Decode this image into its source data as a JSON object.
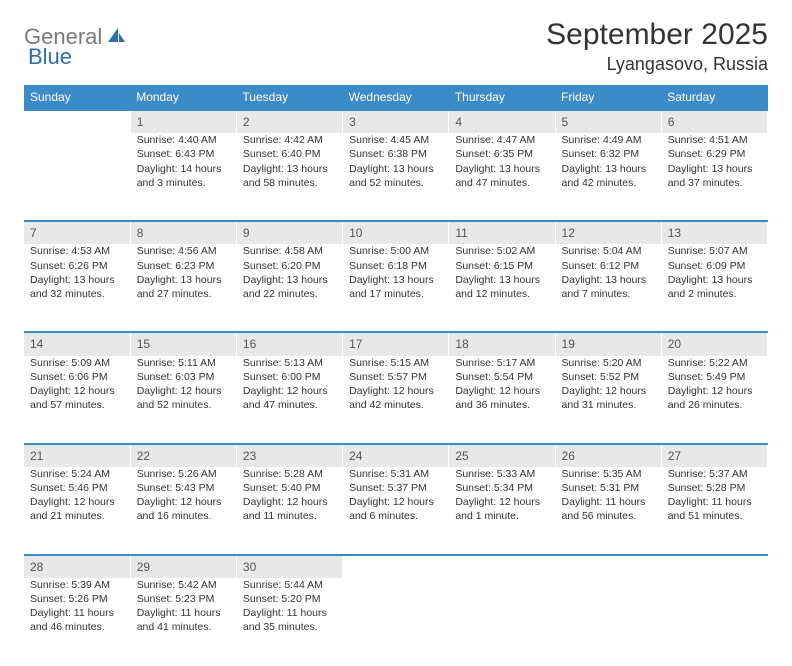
{
  "logo": {
    "text1": "General",
    "text2": "Blue"
  },
  "title": "September 2025",
  "location": "Lyangasovo, Russia",
  "accent_color": "#3b8bc8",
  "day_bg": "#e8e8e8",
  "weekdays": [
    "Sunday",
    "Monday",
    "Tuesday",
    "Wednesday",
    "Thursday",
    "Friday",
    "Saturday"
  ],
  "weeks": [
    {
      "nums": [
        "",
        "1",
        "2",
        "3",
        "4",
        "5",
        "6"
      ],
      "cells": [
        null,
        {
          "sunrise": "Sunrise: 4:40 AM",
          "sunset": "Sunset: 6:43 PM",
          "day1": "Daylight: 14 hours",
          "day2": "and 3 minutes."
        },
        {
          "sunrise": "Sunrise: 4:42 AM",
          "sunset": "Sunset: 6:40 PM",
          "day1": "Daylight: 13 hours",
          "day2": "and 58 minutes."
        },
        {
          "sunrise": "Sunrise: 4:45 AM",
          "sunset": "Sunset: 6:38 PM",
          "day1": "Daylight: 13 hours",
          "day2": "and 52 minutes."
        },
        {
          "sunrise": "Sunrise: 4:47 AM",
          "sunset": "Sunset: 6:35 PM",
          "day1": "Daylight: 13 hours",
          "day2": "and 47 minutes."
        },
        {
          "sunrise": "Sunrise: 4:49 AM",
          "sunset": "Sunset: 6:32 PM",
          "day1": "Daylight: 13 hours",
          "day2": "and 42 minutes."
        },
        {
          "sunrise": "Sunrise: 4:51 AM",
          "sunset": "Sunset: 6:29 PM",
          "day1": "Daylight: 13 hours",
          "day2": "and 37 minutes."
        }
      ]
    },
    {
      "nums": [
        "7",
        "8",
        "9",
        "10",
        "11",
        "12",
        "13"
      ],
      "cells": [
        {
          "sunrise": "Sunrise: 4:53 AM",
          "sunset": "Sunset: 6:26 PM",
          "day1": "Daylight: 13 hours",
          "day2": "and 32 minutes."
        },
        {
          "sunrise": "Sunrise: 4:56 AM",
          "sunset": "Sunset: 6:23 PM",
          "day1": "Daylight: 13 hours",
          "day2": "and 27 minutes."
        },
        {
          "sunrise": "Sunrise: 4:58 AM",
          "sunset": "Sunset: 6:20 PM",
          "day1": "Daylight: 13 hours",
          "day2": "and 22 minutes."
        },
        {
          "sunrise": "Sunrise: 5:00 AM",
          "sunset": "Sunset: 6:18 PM",
          "day1": "Daylight: 13 hours",
          "day2": "and 17 minutes."
        },
        {
          "sunrise": "Sunrise: 5:02 AM",
          "sunset": "Sunset: 6:15 PM",
          "day1": "Daylight: 13 hours",
          "day2": "and 12 minutes."
        },
        {
          "sunrise": "Sunrise: 5:04 AM",
          "sunset": "Sunset: 6:12 PM",
          "day1": "Daylight: 13 hours",
          "day2": "and 7 minutes."
        },
        {
          "sunrise": "Sunrise: 5:07 AM",
          "sunset": "Sunset: 6:09 PM",
          "day1": "Daylight: 13 hours",
          "day2": "and 2 minutes."
        }
      ]
    },
    {
      "nums": [
        "14",
        "15",
        "16",
        "17",
        "18",
        "19",
        "20"
      ],
      "cells": [
        {
          "sunrise": "Sunrise: 5:09 AM",
          "sunset": "Sunset: 6:06 PM",
          "day1": "Daylight: 12 hours",
          "day2": "and 57 minutes."
        },
        {
          "sunrise": "Sunrise: 5:11 AM",
          "sunset": "Sunset: 6:03 PM",
          "day1": "Daylight: 12 hours",
          "day2": "and 52 minutes."
        },
        {
          "sunrise": "Sunrise: 5:13 AM",
          "sunset": "Sunset: 6:00 PM",
          "day1": "Daylight: 12 hours",
          "day2": "and 47 minutes."
        },
        {
          "sunrise": "Sunrise: 5:15 AM",
          "sunset": "Sunset: 5:57 PM",
          "day1": "Daylight: 12 hours",
          "day2": "and 42 minutes."
        },
        {
          "sunrise": "Sunrise: 5:17 AM",
          "sunset": "Sunset: 5:54 PM",
          "day1": "Daylight: 12 hours",
          "day2": "and 36 minutes."
        },
        {
          "sunrise": "Sunrise: 5:20 AM",
          "sunset": "Sunset: 5:52 PM",
          "day1": "Daylight: 12 hours",
          "day2": "and 31 minutes."
        },
        {
          "sunrise": "Sunrise: 5:22 AM",
          "sunset": "Sunset: 5:49 PM",
          "day1": "Daylight: 12 hours",
          "day2": "and 26 minutes."
        }
      ]
    },
    {
      "nums": [
        "21",
        "22",
        "23",
        "24",
        "25",
        "26",
        "27"
      ],
      "cells": [
        {
          "sunrise": "Sunrise: 5:24 AM",
          "sunset": "Sunset: 5:46 PM",
          "day1": "Daylight: 12 hours",
          "day2": "and 21 minutes."
        },
        {
          "sunrise": "Sunrise: 5:26 AM",
          "sunset": "Sunset: 5:43 PM",
          "day1": "Daylight: 12 hours",
          "day2": "and 16 minutes."
        },
        {
          "sunrise": "Sunrise: 5:28 AM",
          "sunset": "Sunset: 5:40 PM",
          "day1": "Daylight: 12 hours",
          "day2": "and 11 minutes."
        },
        {
          "sunrise": "Sunrise: 5:31 AM",
          "sunset": "Sunset: 5:37 PM",
          "day1": "Daylight: 12 hours",
          "day2": "and 6 minutes."
        },
        {
          "sunrise": "Sunrise: 5:33 AM",
          "sunset": "Sunset: 5:34 PM",
          "day1": "Daylight: 12 hours",
          "day2": "and 1 minute."
        },
        {
          "sunrise": "Sunrise: 5:35 AM",
          "sunset": "Sunset: 5:31 PM",
          "day1": "Daylight: 11 hours",
          "day2": "and 56 minutes."
        },
        {
          "sunrise": "Sunrise: 5:37 AM",
          "sunset": "Sunset: 5:28 PM",
          "day1": "Daylight: 11 hours",
          "day2": "and 51 minutes."
        }
      ]
    },
    {
      "nums": [
        "28",
        "29",
        "30",
        "",
        "",
        "",
        ""
      ],
      "cells": [
        {
          "sunrise": "Sunrise: 5:39 AM",
          "sunset": "Sunset: 5:26 PM",
          "day1": "Daylight: 11 hours",
          "day2": "and 46 minutes."
        },
        {
          "sunrise": "Sunrise: 5:42 AM",
          "sunset": "Sunset: 5:23 PM",
          "day1": "Daylight: 11 hours",
          "day2": "and 41 minutes."
        },
        {
          "sunrise": "Sunrise: 5:44 AM",
          "sunset": "Sunset: 5:20 PM",
          "day1": "Daylight: 11 hours",
          "day2": "and 35 minutes."
        },
        null,
        null,
        null,
        null
      ]
    }
  ]
}
